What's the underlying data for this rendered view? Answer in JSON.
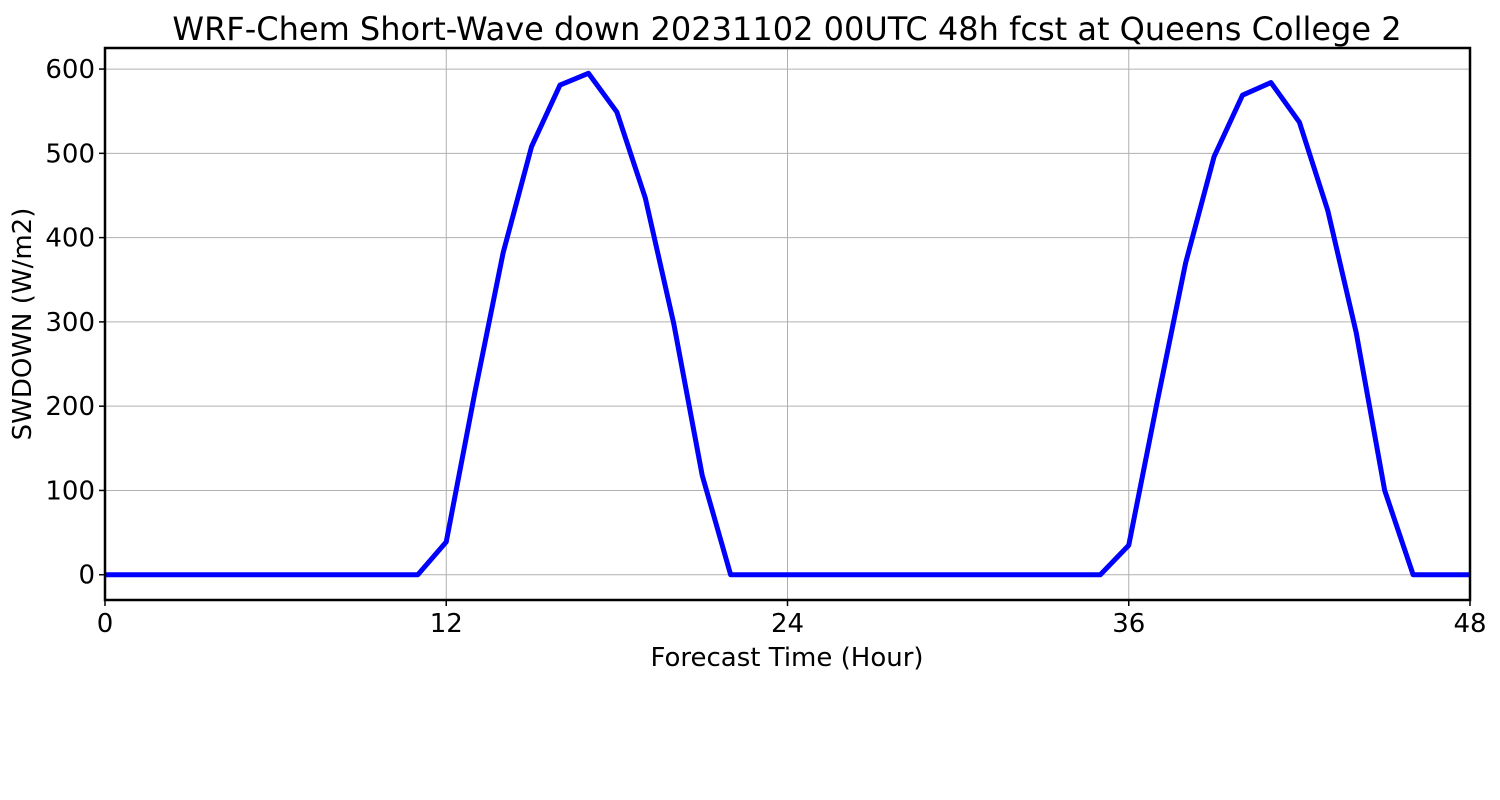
{
  "chart_data": {
    "type": "line",
    "title": "WRF-Chem Short-Wave down  20231102 00UTC 48h fcst at Queens College 2",
    "xlabel": "Forecast Time (Hour)",
    "ylabel": "SWDOWN  (W/m2)",
    "xlim": [
      0,
      48
    ],
    "ylim": [
      -30,
      625
    ],
    "xticks": [
      0,
      12,
      24,
      36,
      48
    ],
    "yticks": [
      0,
      100,
      200,
      300,
      400,
      500,
      600
    ],
    "grid": true,
    "series": [
      {
        "color": "#0000ff",
        "x": [
          0,
          1,
          2,
          3,
          4,
          5,
          6,
          7,
          8,
          9,
          10,
          11,
          12,
          13,
          14,
          15,
          16,
          17,
          18,
          19,
          20,
          21,
          22,
          23,
          24,
          25,
          26,
          27,
          28,
          29,
          30,
          31,
          32,
          33,
          34,
          35,
          36,
          37,
          38,
          39,
          40,
          41,
          42,
          43,
          44,
          45,
          46,
          47,
          48
        ],
        "y": [
          0,
          0,
          0,
          0,
          0,
          0,
          0,
          0,
          0,
          0,
          0,
          0,
          39,
          215,
          382,
          508,
          581,
          595,
          549,
          447,
          298,
          118,
          0,
          0,
          0,
          0,
          0,
          0,
          0,
          0,
          0,
          0,
          0,
          0,
          0,
          0,
          35,
          205,
          370,
          496,
          569,
          584,
          537,
          432,
          287,
          100,
          0,
          0,
          0
        ]
      }
    ]
  }
}
